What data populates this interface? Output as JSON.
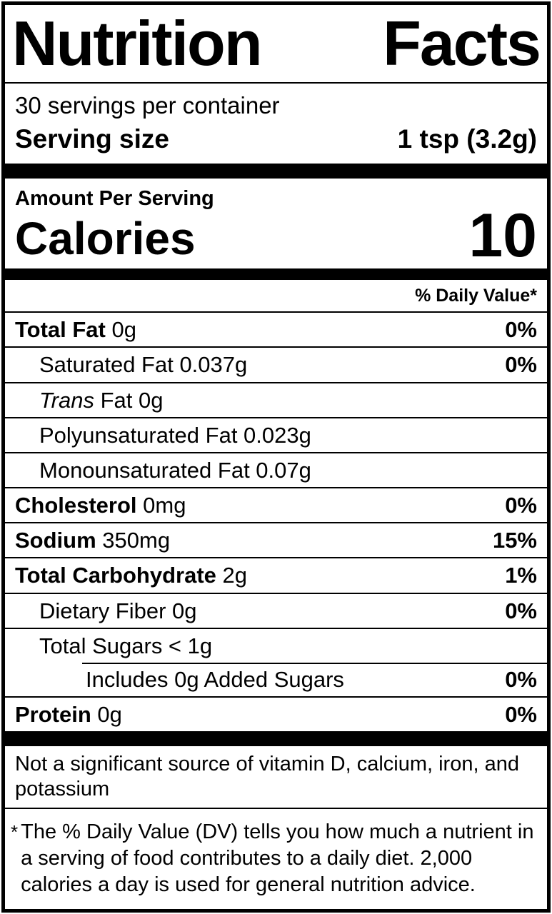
{
  "label": {
    "title": "Nutrition Facts",
    "servings_per_container": "30 servings per container",
    "serving_size_label": "Serving size",
    "serving_size_value": "1 tsp (3.2g)",
    "amount_per_serving": "Amount Per Serving",
    "calories_label": "Calories",
    "calories_value": "10",
    "daily_value_header": "% Daily Value*",
    "rows": [
      {
        "bold": "Total Fat",
        "text": " 0g",
        "dv": "0%",
        "indent": 0
      },
      {
        "text": "Saturated Fat 0.037g",
        "dv": "0%",
        "indent": 1
      },
      {
        "italic": "Trans",
        "text": " Fat 0g",
        "dv": "",
        "indent": 1
      },
      {
        "text": "Polyunsaturated Fat 0.023g",
        "dv": "",
        "indent": 1
      },
      {
        "text": "Monounsaturated Fat 0.07g",
        "dv": "",
        "indent": 1
      },
      {
        "bold": "Cholesterol",
        "text": " 0mg",
        "dv": "0%",
        "indent": 0
      },
      {
        "bold": "Sodium",
        "text": " 350mg",
        "dv": "15%",
        "indent": 0
      },
      {
        "bold": "Total Carbohydrate",
        "text": " 2g",
        "dv": "1%",
        "indent": 0
      },
      {
        "text": "Dietary Fiber 0g",
        "dv": "0%",
        "indent": 1
      },
      {
        "text": "Total Sugars < 1g",
        "dv": "",
        "indent": 1
      },
      {
        "text": "Includes 0g Added Sugars",
        "dv": "0%",
        "indent": 2,
        "partial_border": true
      },
      {
        "bold": "Protein",
        "text": " 0g",
        "dv": "0%",
        "indent": 0
      }
    ],
    "insignificant_note": "Not a significant source of vitamin D, calcium, iron, and potassium",
    "footnote_marker": "*",
    "footnote": "The % Daily Value (DV) tells you how much a nutrient in a serving of food contributes to a daily diet. 2,000 calories a day is used for general nutrition advice."
  }
}
